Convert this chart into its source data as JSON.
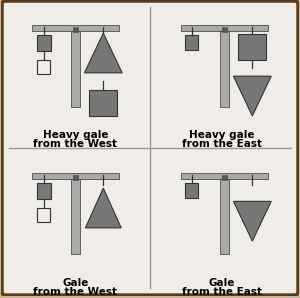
{
  "background_color": "#c8b89a",
  "outer_border_color": "#5a3a1a",
  "inner_bg_color": "#f0ede8",
  "divider_color": "#999999",
  "mast_color": "#aaaaaa",
  "mast_dark_color": "#555555",
  "shape_dark": "#777777",
  "shape_white": "#f0ede8",
  "shape_outline": "#333333",
  "titles": [
    [
      "Heavy gale",
      "from the West"
    ],
    [
      "Heavy gale",
      "from the East"
    ],
    [
      "Gale",
      "from the West"
    ],
    [
      "Gale",
      "from the East"
    ]
  ]
}
